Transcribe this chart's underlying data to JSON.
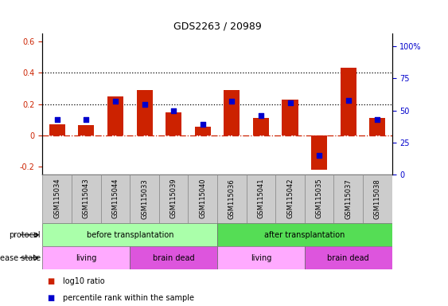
{
  "title": "GDS2263 / 20989",
  "samples": [
    "GSM115034",
    "GSM115043",
    "GSM115044",
    "GSM115033",
    "GSM115039",
    "GSM115040",
    "GSM115036",
    "GSM115041",
    "GSM115042",
    "GSM115035",
    "GSM115037",
    "GSM115038"
  ],
  "log10_ratio": [
    0.07,
    0.065,
    0.25,
    0.29,
    0.145,
    0.055,
    0.29,
    0.11,
    0.23,
    -0.22,
    0.43,
    0.11
  ],
  "percentile_rank_pct": [
    43,
    43,
    57,
    55,
    50,
    39,
    57,
    46,
    56,
    15,
    58,
    43
  ],
  "left_ylim": [
    -0.25,
    0.65
  ],
  "left_yticks": [
    -0.2,
    0.0,
    0.2,
    0.4,
    0.6
  ],
  "right_ylim": [
    0,
    110
  ],
  "right_yticks": [
    0,
    25,
    50,
    75,
    100
  ],
  "hlines_dotted": [
    0.2,
    0.4
  ],
  "zero_line_color": "#cc2200",
  "bar_color": "#cc2200",
  "scatter_color": "#0000cc",
  "color_light_green": "#aaffaa",
  "color_green": "#55dd55",
  "color_light_magenta": "#ffaaff",
  "color_magenta": "#dd55dd",
  "color_gray": "#cccccc",
  "legend_bar_label": "log10 ratio",
  "legend_scatter_label": "percentile rank within the sample",
  "title_fontsize": 9,
  "tick_fontsize": 7,
  "label_fontsize": 7,
  "bar_width": 0.55
}
